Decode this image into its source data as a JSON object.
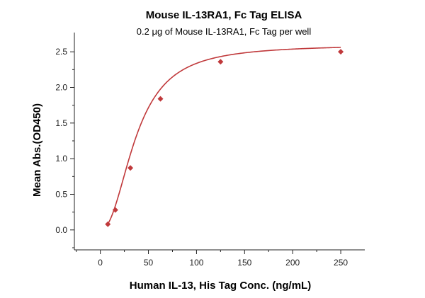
{
  "chart_data": {
    "type": "scatter",
    "title": "Mouse IL-13RA1, Fc Tag ELISA",
    "subtitle": "0.2 μg of Mouse IL-13RA1, Fc Tag per well",
    "xlabel": "Human IL-13, His Tag Conc. (ng/mL)",
    "ylabel": "Mean Abs.(OD450)",
    "xlim": [
      -27,
      275
    ],
    "ylim": [
      -0.28,
      2.77
    ],
    "x_ticks": [
      0,
      50,
      100,
      150,
      200,
      250
    ],
    "y_ticks": [
      0.0,
      0.5,
      1.0,
      1.5,
      2.0,
      2.5
    ],
    "x_tick_labels": [
      "0",
      "50",
      "100",
      "150",
      "200",
      "250"
    ],
    "y_tick_labels": [
      "0.0",
      "0.5",
      "1.0",
      "1.5",
      "2.0",
      "2.5"
    ],
    "grid": false,
    "series": [
      {
        "color": "#c0393b",
        "marker": "diamond",
        "x": [
          7.8,
          15.6,
          31.25,
          62.5,
          125,
          250
        ],
        "y": [
          0.08,
          0.28,
          0.87,
          1.84,
          2.36,
          2.5
        ],
        "fit_curve": true
      }
    ]
  }
}
